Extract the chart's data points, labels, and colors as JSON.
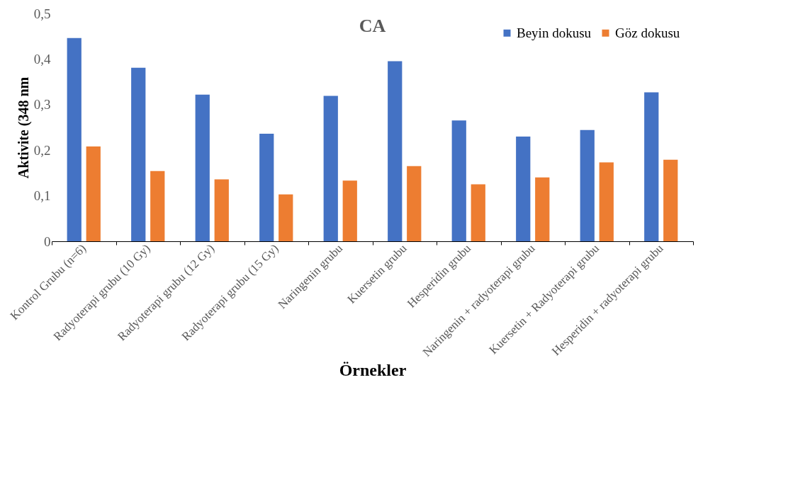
{
  "chart_data": {
    "type": "bar",
    "title": "CA",
    "xlabel": "Örnekler",
    "ylabel": "Aktivite (348 nm",
    "categories": [
      "Kontrol Grubu (n=6)",
      "Radyoterapi grubu (10 Gy)",
      "Radyoterapi grubu (12 Gy)",
      "Radyoterapi grubu (15 Gy)",
      "Naringenin grubu",
      "Kuersetin grubu",
      "Hesperidin grubu",
      "Naringenin + radyoterapi grubu",
      "Kuersetin + Radyoterapi  grubu",
      "Hesperidin + radyoterapi  grubu"
    ],
    "series": [
      {
        "name": "Beyin dokusu",
        "color": "#4472c4",
        "values": [
          0.446,
          0.381,
          0.322,
          0.236,
          0.319,
          0.395,
          0.265,
          0.23,
          0.244,
          0.327
        ]
      },
      {
        "name": "Göz dokusu",
        "color": "#ed7d31",
        "values": [
          0.208,
          0.154,
          0.136,
          0.103,
          0.133,
          0.165,
          0.125,
          0.14,
          0.173,
          0.179
        ]
      }
    ],
    "ylim": [
      0,
      0.5
    ],
    "yticks": [
      0,
      {
        "value": 0.1,
        "label": "0,1"
      },
      {
        "value": 0.2,
        "label": "0,2"
      },
      {
        "value": 0.3,
        "label": "0,3"
      },
      {
        "value": 0.4,
        "label": "0,4"
      },
      {
        "value": 0.5,
        "label": "0,5"
      }
    ],
    "legend": "top right",
    "grid": false
  }
}
